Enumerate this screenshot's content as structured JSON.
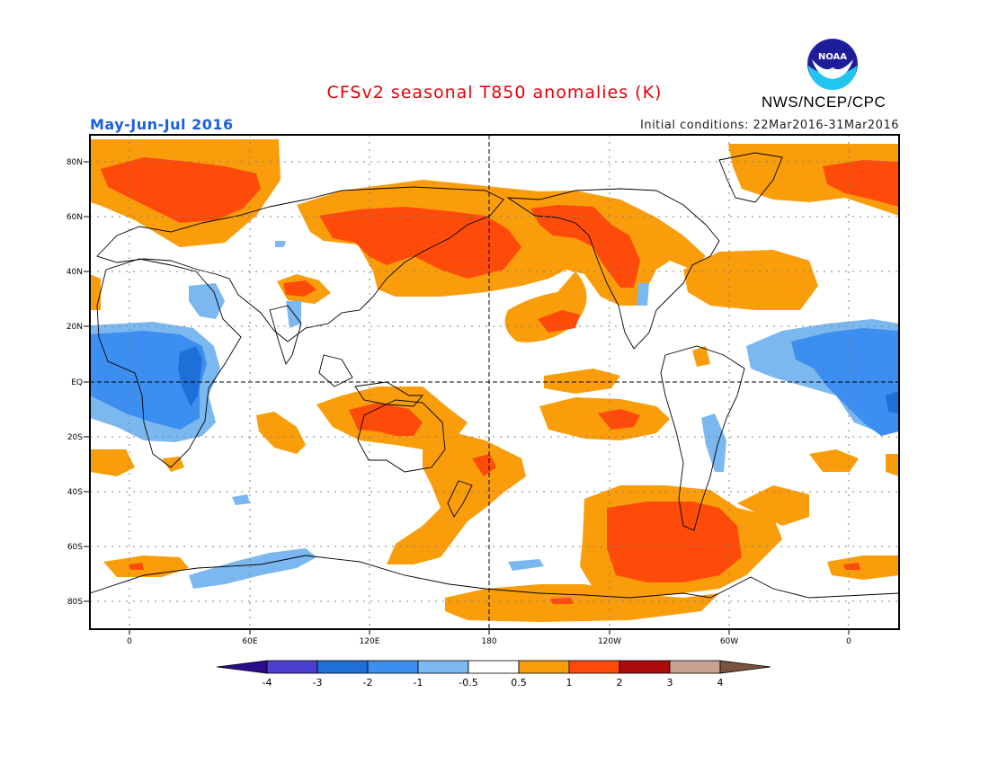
{
  "title": "CFSv2 seasonal T850 anomalies (K)",
  "agency": "NWS/NCEP/CPC",
  "period": "May-Jun-Jul 2016",
  "initial_conditions": "Initial conditions: 22Mar2016-31Mar2016",
  "logo_text": "NOAA",
  "lat_ticks": [
    "80N",
    "60N",
    "40N",
    "20N",
    "EQ",
    "20S",
    "40S",
    "60S",
    "80S"
  ],
  "lon_ticks": [
    "0",
    "60E",
    "120E",
    "180",
    "120W",
    "60W",
    "0"
  ],
  "colorbar": {
    "labels": [
      "-4",
      "-3",
      "-2",
      "-1",
      "-0.5",
      "0.5",
      "1",
      "2",
      "3",
      "4"
    ],
    "colors": [
      "#2a0d8e",
      "#4a3fd0",
      "#1e6fd8",
      "#3c8ff0",
      "#7bb8f0",
      "#ffffff",
      "#f99d0a",
      "#ff4b0a",
      "#ad0a0a",
      "#c8a090",
      "#7a5240"
    ]
  },
  "colors": {
    "title": "#e8000b",
    "period": "#1a5fe0",
    "orange": "#f99d0a",
    "red": "#ff4b0a",
    "light_blue": "#7bb8f0",
    "blue": "#3c8ff0",
    "dark_blue": "#1e6fd8"
  }
}
